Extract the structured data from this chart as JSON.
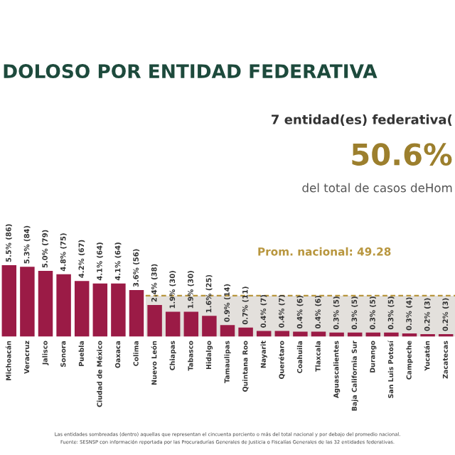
{
  "chart_data": {
    "type": "bar",
    "title": "DOLOSO POR ENTIDAD FEDERATIVA",
    "annotations": [
      "7 entidad(es) federativa(",
      "50.6%",
      "del total de casos deHom",
      "Las entidades sombreadas (dentro) aquellas que representan el cincuenta porciento o más del total nacional y por debajo del promedio nacional.",
      "Fuente: SESNSP con información reportada por las Procuradurías Generales de Justicia o Fiscalías Generales de las 32 entidades federativas."
    ],
    "categories": [
      "Michoacán",
      "Veracruz",
      "Jalisco",
      "Sonora",
      "Puebla",
      "Ciudad de México",
      "Oaxaca",
      "Colima",
      "Nuevo León",
      "Chiapas",
      "Tabasco",
      "Hidalgo",
      "Tamaulipas",
      "Quintana Roo",
      "Nayarit",
      "Querétaro",
      "Coahuila",
      "Tlaxcala",
      "Aguascalientes",
      "Baja California Sur",
      "Durango",
      "San Luis Potosí",
      "Campeche",
      "Yucatán",
      "Zacatecas"
    ],
    "values": [
      86,
      84,
      79,
      75,
      67,
      64,
      64,
      56,
      38,
      30,
      30,
      25,
      14,
      11,
      7,
      7,
      6,
      6,
      5,
      5,
      5,
      5,
      4,
      3,
      3
    ],
    "color": "#9b1b46",
    "value_labels": [
      "5.5% (86)",
      "5.3% (84)",
      "5.0% (79)",
      "4.8% (75)",
      "4.2% (67)",
      "4.1% (64)",
      "4.1% (64)",
      "3.6% (56)",
      "2.4% (38)",
      "1.9% (30)",
      "1.9% (30)",
      "1.6% (25)",
      "0.9% (14)",
      "0.7% (11)",
      "0.4% (7)",
      "0.4% (7)",
      "0.4% (6)",
      "0.4% (6)",
      "0.3% (5)",
      "0.3% (5)",
      "0.3% (5)",
      "0.3% (5)",
      "0.3% (4)",
      "0.2% (3)",
      "0.2% (3)"
    ],
    "ref_lines": [
      {
        "axis": "y",
        "value": 49.28,
        "label": "Prom. nacional: 49.28",
        "color": "#b8963e",
        "line_style": "dashed"
      }
    ],
    "bands": [
      {
        "axis": "x",
        "from": "Nuevo León",
        "to": "Zacatecas",
        "color": "#e3e0dc"
      }
    ],
    "grid": false,
    "legend": false
  }
}
